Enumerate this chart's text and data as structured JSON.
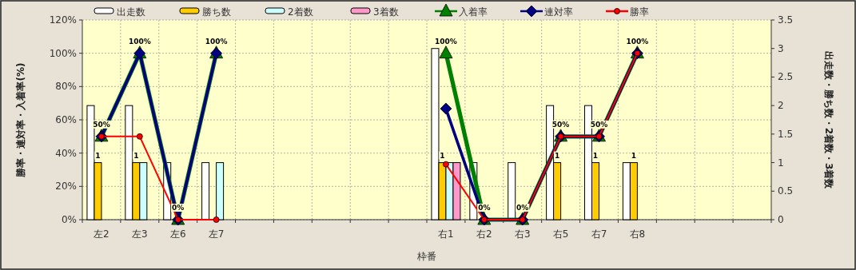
{
  "chart_data": {
    "type": "bar",
    "xlabel": "枠番",
    "ylabel": "勝率・連対率・入着率(%)",
    "y2label": "出走数・勝ち数・2着数・3着数",
    "categories": [
      "左2",
      "左3",
      "左6",
      "左7",
      null,
      null,
      null,
      null,
      null,
      "右1",
      "右2",
      "右3",
      "右5",
      "右7",
      "右8",
      null,
      null,
      null
    ],
    "ylim": [
      0,
      120
    ],
    "yticks": [
      {
        "value": 0,
        "label": "0%"
      },
      {
        "value": 20,
        "label": "20%"
      },
      {
        "value": 40,
        "label": "40%"
      },
      {
        "value": 60,
        "label": "60%"
      },
      {
        "value": 80,
        "label": "80%"
      },
      {
        "value": 100,
        "label": "100%"
      },
      {
        "value": 120,
        "label": "120%"
      }
    ],
    "y2lim": [
      0,
      3.5
    ],
    "y2ticks": [
      0,
      0.5,
      1,
      1.5,
      2,
      2.5,
      3,
      3.5
    ],
    "grid": true,
    "legend": "top",
    "series": [
      {
        "name": "出走数",
        "axis": "y2",
        "color": "#ffffff",
        "values": [
          2,
          2,
          1,
          1,
          null,
          null,
          null,
          null,
          null,
          3,
          1,
          1,
          2,
          2,
          1,
          null,
          null,
          null
        ]
      },
      {
        "name": "勝ち数",
        "axis": "y2",
        "color": "#ffcc00",
        "values": [
          1,
          1,
          0,
          0,
          null,
          null,
          null,
          null,
          null,
          1,
          0,
          0,
          1,
          1,
          1,
          null,
          null,
          null
        ],
        "value_labels": [
          "1",
          "1",
          null,
          null,
          null,
          null,
          null,
          null,
          null,
          "1",
          null,
          null,
          "1",
          "1",
          "1",
          null,
          null,
          null
        ]
      },
      {
        "name": "2着数",
        "axis": "y2",
        "color": "#ccffff",
        "values": [
          0,
          1,
          0,
          1,
          null,
          null,
          null,
          null,
          null,
          1,
          0,
          0,
          0,
          0,
          0,
          null,
          null,
          null
        ]
      },
      {
        "name": "3着数",
        "axis": "y2",
        "color": "#ff99cc",
        "values": [
          0,
          0,
          0,
          0,
          null,
          null,
          null,
          null,
          null,
          1,
          0,
          0,
          0,
          0,
          0,
          null,
          null,
          null
        ]
      },
      {
        "name": "入着率",
        "type": "line",
        "color": "#008000",
        "marker": "triangle",
        "values": [
          50,
          100,
          0,
          100,
          null,
          null,
          null,
          null,
          null,
          100,
          0,
          0,
          50,
          50,
          100,
          null,
          null,
          null
        ],
        "value_labels": [
          "50%",
          "100%",
          "0%",
          "100%",
          null,
          null,
          null,
          null,
          null,
          "100%",
          "0%",
          "0%",
          "50%",
          "50%",
          "100%",
          null,
          null,
          null
        ]
      },
      {
        "name": "連対率",
        "type": "line",
        "color": "#000080",
        "marker": "diamond",
        "values": [
          50,
          100,
          0,
          100,
          null,
          null,
          null,
          null,
          null,
          66.7,
          0,
          0,
          50,
          50,
          100,
          null,
          null,
          null
        ]
      },
      {
        "name": "勝率",
        "type": "line",
        "color": "#ff0000",
        "marker": "circle",
        "values": [
          50,
          50,
          0,
          0,
          null,
          null,
          null,
          null,
          null,
          33.3,
          0,
          0,
          50,
          50,
          100,
          null,
          null,
          null
        ]
      }
    ]
  }
}
